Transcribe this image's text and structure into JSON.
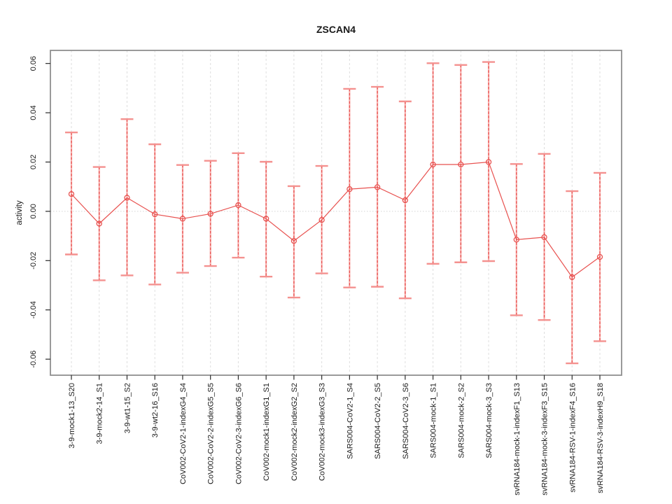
{
  "chart_data": {
    "type": "scatter",
    "title": "ZSCAN4",
    "xlabel": "",
    "ylabel": "activity",
    "legend": "none",
    "grid": "vertical dashed gridline at each category; dotted horizontal line at y=0",
    "ylim": [
      -0.0665,
      0.0653
    ],
    "yticks": [
      -0.06,
      -0.04,
      -0.02,
      0.0,
      0.02,
      0.04,
      0.06
    ],
    "ytick_labels": [
      "-0.06",
      "-0.04",
      "-0.02",
      "0.00",
      "0.02",
      "0.04",
      "0.06"
    ],
    "categories": [
      "3-9-mock1-13_S20",
      "3-9-mock2-14_S1",
      "3-9-wt1-15_S2",
      "3-9-wt2-16_S16",
      "CoV002-CoV2-1-indexG4_S4",
      "CoV002-CoV2-2-indexG5_S5",
      "CoV002-CoV2-3-indexG6_S6",
      "CoV002-mock1-indexG1_S1",
      "CoV002-mock2-indexG2_S2",
      "CoV002-mock3-indexG3_S3",
      "SARS004-CoV2-1_S4",
      "SARS004-CoV2-2_S5",
      "SARS004-CoV2-3_S6",
      "SARS004-mock-1_S1",
      "SARS004-mock-2_S2",
      "SARS004-mock-3_S3",
      "svRNA184-mock-1-indexF1_S13",
      "svRNA184-mock-3-indexF3_S15",
      "svRNA184-RSV-1-indexF4_S16",
      "svRNA184-RSV-3-indexH9_S18"
    ],
    "series": [
      {
        "name": "activity",
        "values": [
          0.007,
          -0.005,
          0.0055,
          -0.0012,
          -0.003,
          -0.001,
          0.0025,
          -0.003,
          -0.012,
          -0.0035,
          0.009,
          0.0098,
          0.0045,
          0.019,
          0.019,
          0.02,
          -0.0115,
          -0.0105,
          -0.0267,
          -0.0185
        ],
        "error_low": [
          -0.0175,
          -0.028,
          -0.026,
          -0.0297,
          -0.0249,
          -0.0222,
          -0.0188,
          -0.0265,
          -0.035,
          -0.0252,
          -0.0309,
          -0.0306,
          -0.0353,
          -0.0213,
          -0.0207,
          -0.0202,
          -0.0422,
          -0.0441,
          -0.0617,
          -0.0527
        ],
        "error_high": [
          0.032,
          0.018,
          0.0374,
          0.0272,
          0.0188,
          0.0205,
          0.0236,
          0.0201,
          0.0102,
          0.0184,
          0.0497,
          0.0505,
          0.0446,
          0.0601,
          0.0594,
          0.0606,
          0.0192,
          0.0233,
          0.0082,
          0.0156
        ]
      }
    ],
    "colors": {
      "point": "#e8514f",
      "series_line": "#e8514f",
      "errorbar_under": "#f8b2b0",
      "errorbar_dash": "#e85553",
      "errorbar_cap": "#f4918f",
      "gridline": "#dedede",
      "zero_line": "#d4d4d4",
      "box_border": "#8f8f8f",
      "tick": "#2a2a2a",
      "text": "#1a1a1a",
      "background": "#ffffff"
    }
  }
}
